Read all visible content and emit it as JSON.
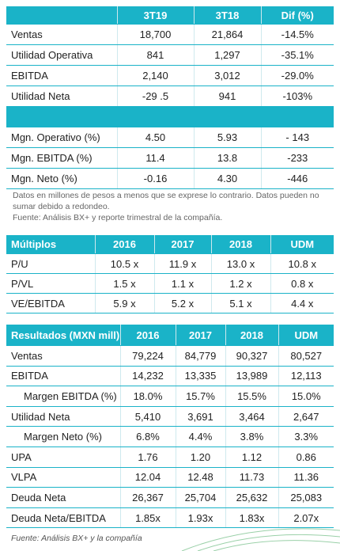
{
  "table1": {
    "header": [
      "3T19",
      "3T18",
      "Dif (%)"
    ],
    "rows": [
      [
        "Ventas",
        "18,700",
        "21,864",
        "-14.5%"
      ],
      [
        "Utilidad Operativa",
        "841",
        "1,297",
        "-35.1%"
      ],
      [
        "EBITDA",
        "2,140",
        "3,012",
        "-29.0%"
      ],
      [
        "Utilidad Neta",
        "-29 .5",
        "941",
        "-103%"
      ]
    ],
    "rows2": [
      [
        "Mgn. Operativo (%)",
        "4.50",
        "5.93",
        "- 143"
      ],
      [
        "Mgn. EBITDA (%)",
        "11.4",
        "13.8",
        "-233"
      ],
      [
        "Mgn. Neto (%)",
        "-0.16",
        "4.30",
        "-446"
      ]
    ]
  },
  "note": {
    "line1": "Datos en millones de pesos a menos que se exprese lo contrario. Datos pueden no sumar debido a redondeo.",
    "line2": "Fuente: Análisis BX+ y reporte trimestral de la compañía."
  },
  "table2": {
    "header": [
      "Múltiplos",
      "2016",
      "2017",
      "2018",
      "UDM"
    ],
    "rows": [
      [
        "P/U",
        "10.5 x",
        "11.9 x",
        "13.0 x",
        "10.8 x"
      ],
      [
        "P/VL",
        "1.5 x",
        "1.1 x",
        "1.2 x",
        "0.8 x"
      ],
      [
        "VE/EBITDA",
        "5.9 x",
        "5.2 x",
        "5.1 x",
        "4.4 x"
      ]
    ]
  },
  "table3": {
    "header": [
      "Resultados (MXN mill)",
      "2016",
      "2017",
      "2018",
      "UDM"
    ],
    "rows": [
      [
        "Ventas",
        "79,224",
        "84,779",
        "90,327",
        "80,527"
      ],
      [
        "EBITDA",
        "14,232",
        "13,335",
        "13,989",
        "12,113"
      ],
      [
        "Margen EBITDA (%)",
        "18.0%",
        "15.7%",
        "15.5%",
        "15.0%"
      ],
      [
        "Utilidad Neta",
        "5,410",
        "3,691",
        "3,464",
        "2,647"
      ],
      [
        "Margen Neto (%)",
        "6.8%",
        "4.4%",
        "3.8%",
        "3.3%"
      ],
      [
        "UPA",
        "1.76",
        "1.20",
        "1.12",
        "0.86"
      ],
      [
        "VLPA",
        "12.04",
        "12.48",
        "11.73",
        "11.36"
      ],
      [
        "Deuda Neta",
        "26,367",
        "25,704",
        "25,632",
        "25,083"
      ],
      [
        "Deuda Neta/EBITDA",
        "1.85x",
        "1.93x",
        "1.83x",
        "2.07x"
      ]
    ]
  },
  "footer": "Fuente: Análisis BX+ y la compañía"
}
